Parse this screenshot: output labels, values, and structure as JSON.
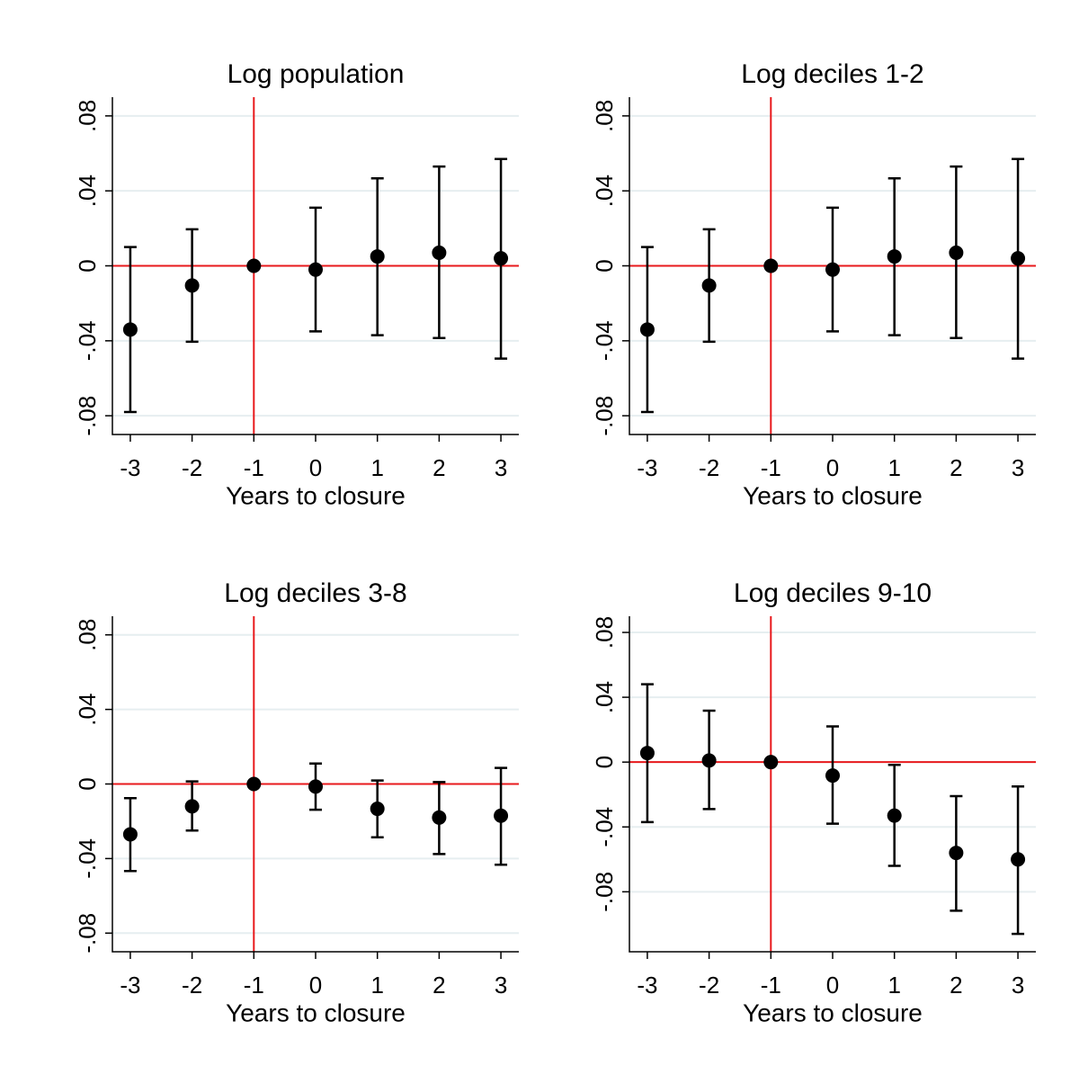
{
  "chart_data": [
    {
      "type": "errorbar",
      "title": "Log population",
      "x_label": "Years to closure",
      "x": [
        -3,
        -2,
        -1,
        0,
        1,
        2,
        3
      ],
      "values": [
        -0.034,
        -0.0105,
        0,
        -0.002,
        0.005,
        0.007,
        0.004
      ],
      "ci_upper": [
        0.01,
        0.0195,
        0,
        0.031,
        0.0467,
        0.053,
        0.057
      ],
      "ci_lower": [
        -0.078,
        -0.0405,
        0,
        -0.035,
        -0.037,
        -0.0385,
        -0.0495
      ],
      "xlim": [
        -3.29,
        3.29
      ],
      "ylim": [
        -0.09,
        0.09
      ],
      "xticks": [
        -3,
        -2,
        -1,
        0,
        1,
        2,
        3
      ],
      "yticks": [
        {
          "value": -0.08,
          "label": "-.08"
        },
        {
          "value": -0.04,
          "label": "-.04"
        },
        0,
        {
          "value": 0.04,
          "label": ".04"
        },
        {
          "value": 0.08,
          "label": ".08"
        }
      ],
      "xline": -1,
      "yline": 0,
      "grid": true,
      "color": "#000000",
      "line_color": "#e8191c"
    },
    {
      "type": "errorbar",
      "title": "Log deciles 1-2",
      "x_label": "Years to closure",
      "x": [
        -3,
        -2,
        -1,
        0,
        1,
        2,
        3
      ],
      "values": [
        -0.034,
        -0.0105,
        0,
        -0.002,
        0.005,
        0.007,
        0.004
      ],
      "ci_upper": [
        0.01,
        0.0195,
        0,
        0.031,
        0.0467,
        0.053,
        0.057
      ],
      "ci_lower": [
        -0.078,
        -0.0405,
        0,
        -0.035,
        -0.037,
        -0.0385,
        -0.0495
      ],
      "xlim": [
        -3.29,
        3.29
      ],
      "ylim": [
        -0.09,
        0.09
      ],
      "xticks": [
        -3,
        -2,
        -1,
        0,
        1,
        2,
        3
      ],
      "yticks": [
        {
          "value": -0.08,
          "label": "-.08"
        },
        {
          "value": -0.04,
          "label": "-.04"
        },
        0,
        {
          "value": 0.04,
          "label": ".04"
        },
        {
          "value": 0.08,
          "label": ".08"
        }
      ],
      "xline": -1,
      "yline": 0,
      "grid": true,
      "color": "#000000",
      "line_color": "#e8191c"
    },
    {
      "type": "errorbar",
      "title": "Log deciles 3-8",
      "x_label": "Years to closure",
      "x": [
        -3,
        -2,
        -1,
        0,
        1,
        2,
        3
      ],
      "values": [
        -0.027,
        -0.012,
        0,
        -0.0014,
        -0.0133,
        -0.018,
        -0.017
      ],
      "ci_upper": [
        -0.0076,
        0.0014,
        0,
        0.011,
        0.0019,
        0.001,
        0.0086
      ],
      "ci_lower": [
        -0.0467,
        -0.025,
        0,
        -0.0138,
        -0.0286,
        -0.0376,
        -0.0433
      ],
      "xlim": [
        -3.29,
        3.29
      ],
      "ylim": [
        -0.09,
        0.09
      ],
      "xticks": [
        -3,
        -2,
        -1,
        0,
        1,
        2,
        3
      ],
      "yticks": [
        {
          "value": -0.08,
          "label": "-.08"
        },
        {
          "value": -0.04,
          "label": "-.04"
        },
        0,
        {
          "value": 0.04,
          "label": ".04"
        },
        {
          "value": 0.08,
          "label": ".08"
        }
      ],
      "xline": -1,
      "yline": 0,
      "grid": true,
      "color": "#000000",
      "line_color": "#e8191c"
    },
    {
      "type": "errorbar",
      "title": "Log deciles 9-10",
      "x_label": "Years to closure",
      "x": [
        -3,
        -2,
        -1,
        0,
        1,
        2,
        3
      ],
      "values": [
        0.0056,
        0.001,
        0,
        -0.0083,
        -0.033,
        -0.056,
        -0.06
      ],
      "ci_upper": [
        0.048,
        0.0317,
        0,
        0.022,
        -0.0017,
        -0.021,
        -0.015
      ],
      "ci_lower": [
        -0.037,
        -0.029,
        0,
        -0.038,
        -0.064,
        -0.0917,
        -0.106
      ],
      "xlim": [
        -3.29,
        3.29
      ],
      "ylim": [
        -0.117,
        0.09
      ],
      "xticks": [
        -3,
        -2,
        -1,
        0,
        1,
        2,
        3
      ],
      "yticks": [
        {
          "value": -0.08,
          "label": "-.08"
        },
        {
          "value": -0.04,
          "label": "-.04"
        },
        0,
        {
          "value": 0.04,
          "label": ".04"
        },
        {
          "value": 0.08,
          "label": ".08"
        }
      ],
      "xline": -1,
      "yline": 0,
      "grid": true,
      "color": "#000000",
      "line_color": "#e8191c"
    }
  ]
}
